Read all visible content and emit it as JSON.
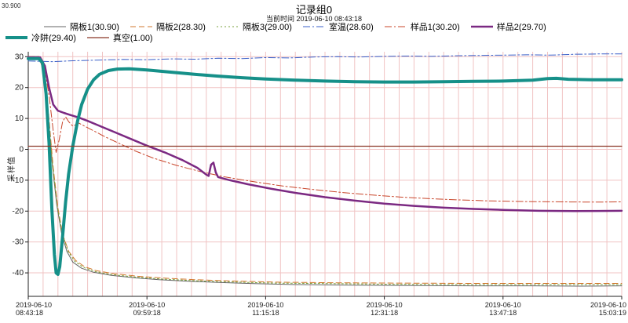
{
  "chart_data": {
    "type": "line",
    "title": "记录组0",
    "subtitle": "当前时间 2019-06-10  08:43:18",
    "corner_value": "30.900",
    "ylabel": "采样值",
    "grid_color": "#f0c3c3",
    "axis_color": "#222222",
    "ylim": [
      -47.6,
      31.6
    ],
    "y_ticks": [
      30,
      20,
      10,
      0,
      -10,
      -20,
      -30,
      -40
    ],
    "x_ticks": [
      {
        "date": "2019-06-10",
        "time": "08:43:18"
      },
      {
        "date": "2019-06-10",
        "time": "09:59:18"
      },
      {
        "date": "2019-06-10",
        "time": "11:15:18"
      },
      {
        "date": "2019-06-10",
        "time": "12:31:18"
      },
      {
        "date": "2019-06-10",
        "time": "13:47:18"
      },
      {
        "date": "2019-06-10",
        "time": "15:03:19"
      }
    ],
    "series": [
      {
        "name": "隔板1",
        "label": "隔板1(30.90)",
        "row": 1,
        "color": "#666666",
        "width": 1,
        "dash": "",
        "points": [
          [
            0,
            30
          ],
          [
            0.018,
            30
          ],
          [
            0.025,
            26
          ],
          [
            0.032,
            14
          ],
          [
            0.04,
            -4
          ],
          [
            0.048,
            -18
          ],
          [
            0.056,
            -27
          ],
          [
            0.065,
            -33
          ],
          [
            0.075,
            -36.5
          ],
          [
            0.09,
            -38.5
          ],
          [
            0.11,
            -39.8
          ],
          [
            0.14,
            -40.8
          ],
          [
            0.18,
            -41.6
          ],
          [
            0.22,
            -42.2
          ],
          [
            0.27,
            -42.7
          ],
          [
            0.32,
            -43.1
          ],
          [
            0.38,
            -43.5
          ],
          [
            0.45,
            -43.8
          ],
          [
            0.55,
            -44
          ],
          [
            0.65,
            -44.1
          ],
          [
            0.75,
            -44.2
          ],
          [
            0.85,
            -44.2
          ],
          [
            0.93,
            -44.3
          ],
          [
            1,
            -44.2
          ]
        ]
      },
      {
        "name": "隔板2",
        "label": "隔板2(28.30)",
        "row": 1,
        "color": "#d2772e",
        "width": 1,
        "dash": "7,4",
        "points": [
          [
            0,
            30
          ],
          [
            0.018,
            30
          ],
          [
            0.026,
            25
          ],
          [
            0.034,
            12
          ],
          [
            0.042,
            -6
          ],
          [
            0.05,
            -19
          ],
          [
            0.058,
            -27.5
          ],
          [
            0.068,
            -33
          ],
          [
            0.08,
            -36
          ],
          [
            0.095,
            -38
          ],
          [
            0.115,
            -39.3
          ],
          [
            0.145,
            -40.3
          ],
          [
            0.185,
            -41.1
          ],
          [
            0.23,
            -41.7
          ],
          [
            0.28,
            -42.2
          ],
          [
            0.34,
            -42.6
          ],
          [
            0.42,
            -43
          ],
          [
            0.52,
            -43.2
          ],
          [
            0.62,
            -43.3
          ],
          [
            0.75,
            -43.4
          ],
          [
            0.88,
            -43.4
          ],
          [
            1,
            -43.4
          ]
        ]
      },
      {
        "name": "隔板3",
        "label": "隔板3(29.00)",
        "row": 1,
        "color": "#7aa23c",
        "width": 1,
        "dash": "2,3",
        "points": [
          [
            0,
            30
          ],
          [
            0.018,
            30
          ],
          [
            0.026,
            25.5
          ],
          [
            0.033,
            13
          ],
          [
            0.041,
            -5
          ],
          [
            0.049,
            -18.5
          ],
          [
            0.057,
            -27
          ],
          [
            0.067,
            -33
          ],
          [
            0.078,
            -36.2
          ],
          [
            0.093,
            -38.2
          ],
          [
            0.113,
            -39.6
          ],
          [
            0.143,
            -40.6
          ],
          [
            0.183,
            -41.4
          ],
          [
            0.225,
            -42
          ],
          [
            0.275,
            -42.5
          ],
          [
            0.335,
            -42.9
          ],
          [
            0.415,
            -43.3
          ],
          [
            0.515,
            -43.5
          ],
          [
            0.615,
            -43.7
          ],
          [
            0.75,
            -43.8
          ],
          [
            0.88,
            -43.8
          ],
          [
            1,
            -43.8
          ]
        ]
      },
      {
        "name": "室温",
        "label": "室温(28.60)",
        "row": 1,
        "color": "#3a5fc8",
        "width": 1,
        "dash": "9,3,2,3",
        "points": [
          [
            0,
            28.6
          ],
          [
            0.04,
            28.4
          ],
          [
            0.08,
            28.7
          ],
          [
            0.12,
            28.9
          ],
          [
            0.16,
            29.1
          ],
          [
            0.2,
            29
          ],
          [
            0.24,
            29.3
          ],
          [
            0.28,
            29.2
          ],
          [
            0.32,
            29.5
          ],
          [
            0.36,
            29.4
          ],
          [
            0.4,
            29.7
          ],
          [
            0.44,
            29.6
          ],
          [
            0.48,
            29.9
          ],
          [
            0.52,
            30
          ],
          [
            0.56,
            29.9
          ],
          [
            0.6,
            30.1
          ],
          [
            0.64,
            30.2
          ],
          [
            0.68,
            30.1
          ],
          [
            0.72,
            30.3
          ],
          [
            0.76,
            30.4
          ],
          [
            0.8,
            30.5
          ],
          [
            0.84,
            30.6
          ],
          [
            0.88,
            30.5
          ],
          [
            0.92,
            30.8
          ],
          [
            0.96,
            30.9
          ],
          [
            1,
            30.9
          ]
        ]
      },
      {
        "name": "样品1",
        "label": "样品1(30.20)",
        "row": 1,
        "color": "#c8452a",
        "width": 1,
        "dash": "9,3,2,3",
        "points": [
          [
            0,
            30
          ],
          [
            0.02,
            30
          ],
          [
            0.028,
            26
          ],
          [
            0.036,
            16
          ],
          [
            0.042,
            6
          ],
          [
            0.047,
            -1
          ],
          [
            0.052,
            3
          ],
          [
            0.058,
            9
          ],
          [
            0.063,
            10.5
          ],
          [
            0.068,
            9
          ],
          [
            0.075,
            7.5
          ],
          [
            0.085,
            8.5
          ],
          [
            0.095,
            7.5
          ],
          [
            0.11,
            6
          ],
          [
            0.13,
            4
          ],
          [
            0.15,
            2.2
          ],
          [
            0.18,
            -0.5
          ],
          [
            0.21,
            -2.8
          ],
          [
            0.25,
            -5.2
          ],
          [
            0.29,
            -7.2
          ],
          [
            0.33,
            -8.9
          ],
          [
            0.38,
            -10.5
          ],
          [
            0.43,
            -11.9
          ],
          [
            0.48,
            -13
          ],
          [
            0.53,
            -14
          ],
          [
            0.58,
            -14.8
          ],
          [
            0.63,
            -15.5
          ],
          [
            0.68,
            -16
          ],
          [
            0.73,
            -16.4
          ],
          [
            0.78,
            -16.7
          ],
          [
            0.84,
            -16.9
          ],
          [
            0.9,
            -17
          ],
          [
            0.95,
            -17.1
          ],
          [
            1,
            -17
          ]
        ]
      },
      {
        "name": "样品2",
        "label": "样品2(29.70)",
        "row": 1,
        "color": "#7b2982",
        "width": 2.5,
        "dash": "",
        "points": [
          [
            0,
            29.8
          ],
          [
            0.02,
            29.8
          ],
          [
            0.028,
            27
          ],
          [
            0.035,
            20
          ],
          [
            0.042,
            14.5
          ],
          [
            0.05,
            12.5
          ],
          [
            0.06,
            11.8
          ],
          [
            0.07,
            11.2
          ],
          [
            0.085,
            10.3
          ],
          [
            0.1,
            9.2
          ],
          [
            0.12,
            7.6
          ],
          [
            0.145,
            5.6
          ],
          [
            0.17,
            3.6
          ],
          [
            0.2,
            1.2
          ],
          [
            0.23,
            -1
          ],
          [
            0.26,
            -3.5
          ],
          [
            0.285,
            -6
          ],
          [
            0.3,
            -8.2
          ],
          [
            0.304,
            -8.6
          ],
          [
            0.308,
            -5
          ],
          [
            0.312,
            -4.3
          ],
          [
            0.316,
            -7.5
          ],
          [
            0.32,
            -9
          ],
          [
            0.34,
            -10
          ],
          [
            0.37,
            -11.3
          ],
          [
            0.41,
            -12.8
          ],
          [
            0.45,
            -14.1
          ],
          [
            0.5,
            -15.5
          ],
          [
            0.55,
            -16.6
          ],
          [
            0.6,
            -17.6
          ],
          [
            0.65,
            -18.3
          ],
          [
            0.7,
            -18.9
          ],
          [
            0.75,
            -19.3
          ],
          [
            0.8,
            -19.6
          ],
          [
            0.86,
            -19.9
          ],
          [
            0.92,
            -20
          ],
          [
            1,
            -19.9
          ]
        ]
      },
      {
        "name": "冷阱",
        "label": "冷阱(29.40)",
        "row": 2,
        "color": "#169089",
        "width": 4,
        "dash": "",
        "points": [
          [
            0,
            29.4
          ],
          [
            0.018,
            29.4
          ],
          [
            0.024,
            28
          ],
          [
            0.03,
            18
          ],
          [
            0.035,
            2
          ],
          [
            0.04,
            -20
          ],
          [
            0.044,
            -34
          ],
          [
            0.047,
            -40
          ],
          [
            0.05,
            -40.5
          ],
          [
            0.053,
            -38
          ],
          [
            0.058,
            -28
          ],
          [
            0.063,
            -17
          ],
          [
            0.068,
            -8
          ],
          [
            0.075,
            1
          ],
          [
            0.083,
            9
          ],
          [
            0.09,
            14.5
          ],
          [
            0.1,
            19.5
          ],
          [
            0.11,
            22.5
          ],
          [
            0.12,
            24.3
          ],
          [
            0.135,
            25.5
          ],
          [
            0.15,
            26
          ],
          [
            0.17,
            26.1
          ],
          [
            0.2,
            25.7
          ],
          [
            0.24,
            25
          ],
          [
            0.28,
            24.3
          ],
          [
            0.32,
            23.7
          ],
          [
            0.36,
            23.2
          ],
          [
            0.4,
            22.8
          ],
          [
            0.45,
            22.4
          ],
          [
            0.5,
            22.1
          ],
          [
            0.55,
            21.9
          ],
          [
            0.6,
            21.8
          ],
          [
            0.65,
            21.8
          ],
          [
            0.7,
            21.9
          ],
          [
            0.75,
            22
          ],
          [
            0.8,
            22.1
          ],
          [
            0.85,
            22.4
          ],
          [
            0.875,
            22.9
          ],
          [
            0.89,
            23
          ],
          [
            0.91,
            22.7
          ],
          [
            0.95,
            22.5
          ],
          [
            1,
            22.5
          ]
        ]
      },
      {
        "name": "真空",
        "label": "真空(1.00)",
        "row": 2,
        "color": "#8b3626",
        "width": 1.2,
        "dash": "",
        "points": [
          [
            0,
            1
          ],
          [
            1,
            1
          ]
        ]
      }
    ]
  }
}
